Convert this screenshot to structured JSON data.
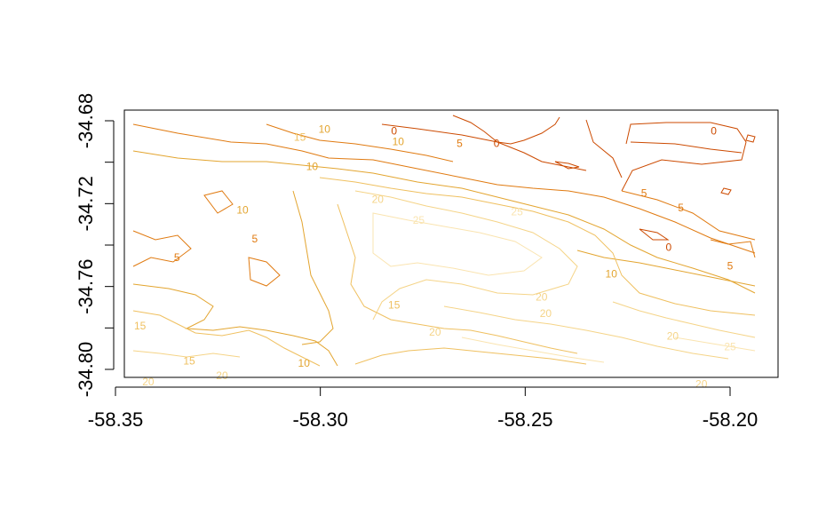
{
  "chart_data": {
    "type": "contour",
    "title": "",
    "xlabel": "",
    "ylabel": "",
    "xlim": [
      -58.35,
      -58.19
    ],
    "ylim": [
      -34.82,
      -34.672
    ],
    "x_ticks": [
      -58.35,
      -58.3,
      -58.25,
      -58.2
    ],
    "x_tick_labels": [
      "-58.35",
      "-58.30",
      "-58.25",
      "-58.20"
    ],
    "y_ticks": [
      -34.68,
      -34.7,
      -34.72,
      -34.74,
      -34.76,
      -34.78,
      -34.8
    ],
    "y_tick_labels": [
      "-34.68",
      "",
      "-34.72",
      "",
      "-34.76",
      "",
      "-34.80"
    ],
    "levels": [
      0,
      5,
      10,
      15,
      20,
      25
    ],
    "level_colors": [
      "#cc4a00",
      "#e07a10",
      "#e3a530",
      "#efc060",
      "#f5d488",
      "#fae4b0"
    ],
    "contour_labels": [
      {
        "text": "0",
        "x": -58.204,
        "y": -34.685,
        "level": 0
      },
      {
        "text": "0",
        "x": -58.257,
        "y": -34.691,
        "level": 0
      },
      {
        "text": "0",
        "x": -58.282,
        "y": -34.685,
        "level": 0
      },
      {
        "text": "0",
        "x": -58.215,
        "y": -34.741,
        "level": 0
      },
      {
        "text": "5",
        "x": -58.266,
        "y": -34.691,
        "level": 5
      },
      {
        "text": "5",
        "x": -58.221,
        "y": -34.715,
        "level": 5
      },
      {
        "text": "5",
        "x": -58.212,
        "y": -34.722,
        "level": 5
      },
      {
        "text": "5",
        "x": -58.335,
        "y": -34.746,
        "level": 5
      },
      {
        "text": "5",
        "x": -58.316,
        "y": -34.737,
        "level": 5
      },
      {
        "text": "5",
        "x": -58.2,
        "y": -34.75,
        "level": 5
      },
      {
        "text": "10",
        "x": -58.302,
        "y": -34.702,
        "level": 10
      },
      {
        "text": "10",
        "x": -58.299,
        "y": -34.684,
        "level": 10
      },
      {
        "text": "10",
        "x": -58.319,
        "y": -34.723,
        "level": 10
      },
      {
        "text": "10",
        "x": -58.281,
        "y": -34.69,
        "level": 10
      },
      {
        "text": "10",
        "x": -58.229,
        "y": -34.754,
        "level": 10
      },
      {
        "text": "10",
        "x": -58.304,
        "y": -34.797,
        "level": 10
      },
      {
        "text": "15",
        "x": -58.305,
        "y": -34.688,
        "level": 15
      },
      {
        "text": "15",
        "x": -58.282,
        "y": -34.769,
        "level": 15
      },
      {
        "text": "15",
        "x": -58.344,
        "y": -34.779,
        "level": 15
      },
      {
        "text": "15",
        "x": -58.332,
        "y": -34.796,
        "level": 15
      },
      {
        "text": "20",
        "x": -58.286,
        "y": -34.718,
        "level": 20
      },
      {
        "text": "20",
        "x": -58.272,
        "y": -34.782,
        "level": 20
      },
      {
        "text": "20",
        "x": -58.246,
        "y": -34.765,
        "level": 20
      },
      {
        "text": "20",
        "x": -58.245,
        "y": -34.773,
        "level": 20
      },
      {
        "text": "20",
        "x": -58.214,
        "y": -34.784,
        "level": 20
      },
      {
        "text": "20",
        "x": -58.324,
        "y": -34.803,
        "level": 20
      },
      {
        "text": "20",
        "x": -58.342,
        "y": -34.806,
        "level": 20
      },
      {
        "text": "20",
        "x": -58.207,
        "y": -34.807,
        "level": 20
      },
      {
        "text": "25",
        "x": -58.276,
        "y": -34.728,
        "level": 25
      },
      {
        "text": "25",
        "x": -58.252,
        "y": -34.724,
        "level": 25
      },
      {
        "text": "25",
        "x": -58.2,
        "y": -34.789,
        "level": 25
      }
    ]
  }
}
